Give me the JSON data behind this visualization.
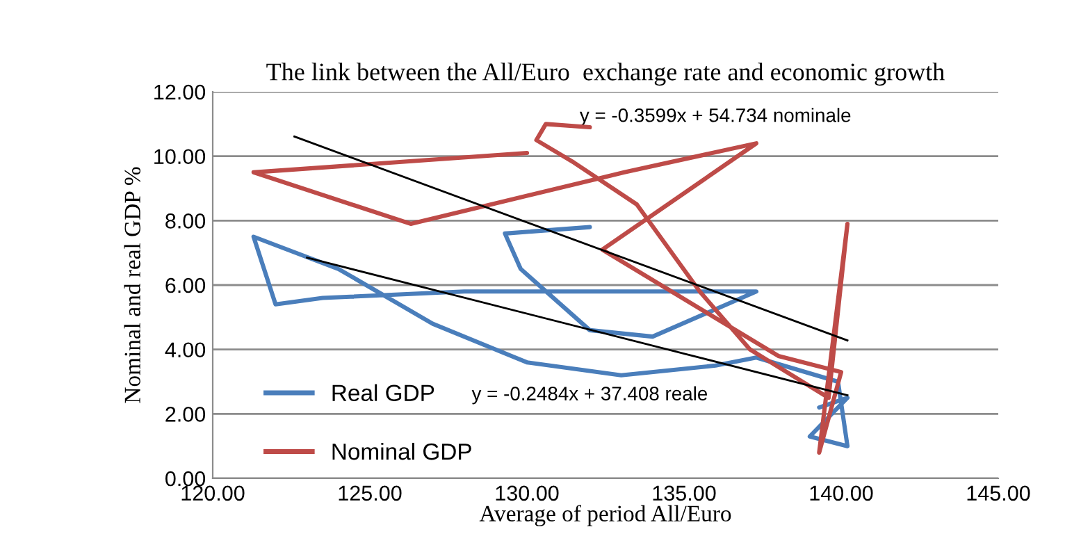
{
  "chart_data": {
    "type": "line",
    "title": "The link between the All/Euro  exchange rate and economic growth",
    "xlabel": "Average of period All/Euro",
    "ylabel": "Nominal and real GDP %",
    "xlim": [
      120,
      145
    ],
    "xticks": [
      {
        "value": 120,
        "label": "120.00"
      },
      {
        "value": 125,
        "label": "125.00"
      },
      {
        "value": 130,
        "label": "130.00"
      },
      {
        "value": 135,
        "label": "135.00"
      },
      {
        "value": 140,
        "label": "140.00"
      },
      {
        "value": 145,
        "label": "145.00"
      }
    ],
    "ylim": [
      0,
      12
    ],
    "yticks": [
      {
        "value": 0,
        "label": "0.00"
      },
      {
        "value": 2,
        "label": "2.00"
      },
      {
        "value": 4,
        "label": "4.00"
      },
      {
        "value": 6,
        "label": "6.00"
      },
      {
        "value": 8,
        "label": "8.00"
      },
      {
        "value": 10,
        "label": "10.00"
      },
      {
        "value": 12,
        "label": "12.00"
      }
    ],
    "grid": "y",
    "legend": "bottom left",
    "marker": "none",
    "line_style": "solid",
    "series": [
      {
        "name": "Real GDP",
        "color": "#4a7ebb",
        "x": [
          132.0,
          129.3,
          129.8,
          132.0,
          134.0,
          137.3,
          133.0,
          128.0,
          123.5,
          122.0,
          121.3,
          124.0,
          127.0,
          130.0,
          133.0,
          136.0,
          137.3,
          139.9,
          140.2,
          139.0,
          140.2,
          139.3
        ],
        "values": [
          7.8,
          7.6,
          6.5,
          4.6,
          4.4,
          5.8,
          5.8,
          5.8,
          5.6,
          5.4,
          7.5,
          6.5,
          4.8,
          3.6,
          3.2,
          3.5,
          3.75,
          3.0,
          1.0,
          1.3,
          2.5,
          2.2
        ]
      },
      {
        "name": "Nominal GDP",
        "color": "#be4b48",
        "x": [
          130.0,
          121.3,
          126.3,
          133.1,
          137.3,
          132.4,
          138.0,
          140.0,
          139.3,
          140.2,
          139.6,
          137.1,
          135.5,
          133.5,
          131.5,
          130.3,
          130.6,
          132.0
        ],
        "values": [
          10.1,
          9.5,
          7.9,
          9.5,
          10.4,
          7.1,
          3.8,
          3.3,
          0.8,
          7.9,
          2.5,
          4.0,
          5.8,
          8.5,
          9.8,
          10.5,
          11.0,
          10.9
        ]
      },
      {
        "type": "line",
        "color": "#000000",
        "x": [
          122.6,
          140.2
        ],
        "values": [
          10.61,
          4.28
        ]
      },
      {
        "type": "line",
        "color": "#000000",
        "x": [
          123.0,
          140.2
        ],
        "values": [
          6.85,
          2.58
        ]
      }
    ],
    "annotations": [
      "y = -0.3599x + 54.734 nominale",
      "y = -0.2484x + 37.408 reale"
    ]
  }
}
